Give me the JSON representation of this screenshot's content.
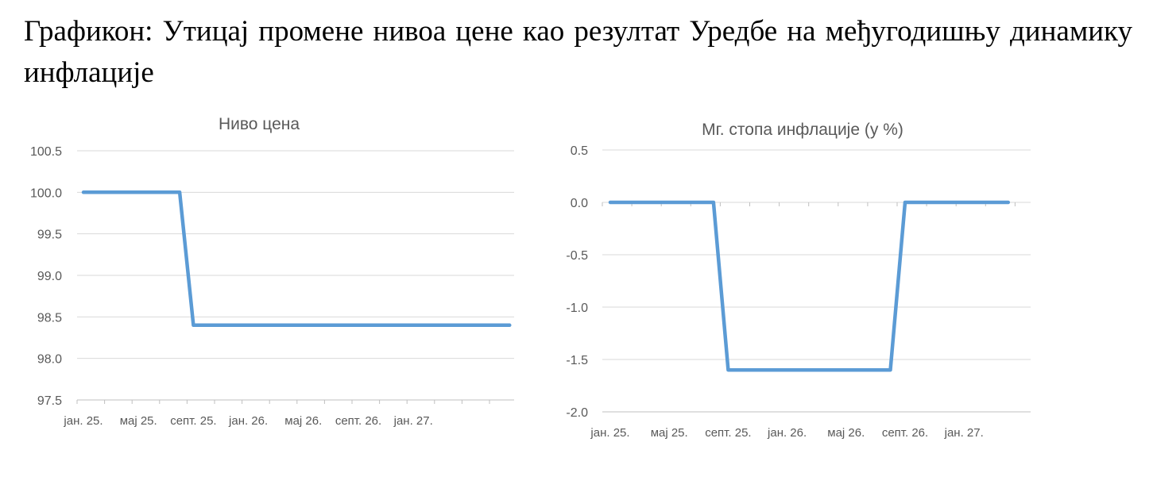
{
  "caption": "Графикон: Утицај промене нивоа цене као резултат Уредбе на међугодишњу динамику инфлације",
  "colors": {
    "series": "#5b9bd5"
  },
  "chart_data": [
    {
      "type": "line",
      "title": "Ниво цена",
      "ylim": [
        97.5,
        100.5
      ],
      "yticks": [
        "100.5",
        "100.0",
        "99.5",
        "99.0",
        "98.5",
        "98.0",
        "97.5"
      ],
      "xtick_labels": [
        "јан. 25.",
        "мај 25.",
        "септ. 25.",
        "јан. 26.",
        "мај 26.",
        "септ. 26.",
        "јан. 27."
      ],
      "grid": true,
      "series": [
        {
          "values": [
            100.0,
            100.0,
            100.0,
            100.0,
            100.0,
            100.0,
            100.0,
            100.0,
            98.4,
            98.4,
            98.4,
            98.4,
            98.4,
            98.4,
            98.4,
            98.4,
            98.4,
            98.4,
            98.4,
            98.4,
            98.4,
            98.4,
            98.4,
            98.4,
            98.4,
            98.4,
            98.4,
            98.4,
            98.4,
            98.4,
            98.4,
            98.4
          ]
        }
      ]
    },
    {
      "type": "line",
      "title": "Мг. стопа инфлације (у %)",
      "ylim": [
        -2.0,
        0.5
      ],
      "yticks": [
        "0.5",
        "0.0",
        "-0.5",
        "-1.0",
        "-1.5",
        "-2.0"
      ],
      "xtick_labels": [
        "јан. 25.",
        "мај 25.",
        "септ. 25.",
        "јан. 26.",
        "мај 26.",
        "септ. 26.",
        "јан. 27."
      ],
      "grid": true,
      "series": [
        {
          "values": [
            0.0,
            0.0,
            0.0,
            0.0,
            0.0,
            0.0,
            0.0,
            0.0,
            -1.6,
            -1.6,
            -1.6,
            -1.6,
            -1.6,
            -1.6,
            -1.6,
            -1.6,
            -1.6,
            -1.6,
            -1.6,
            -1.6,
            0.0,
            0.0,
            0.0,
            0.0,
            0.0,
            0.0,
            0.0,
            0.0
          ]
        }
      ]
    }
  ]
}
